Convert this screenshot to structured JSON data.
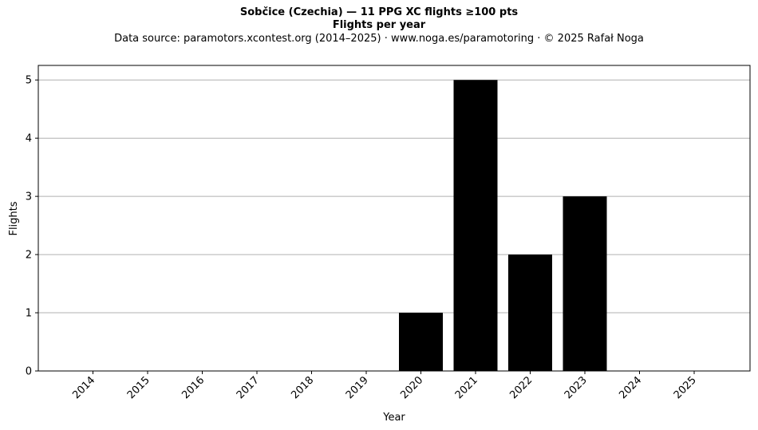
{
  "chart_data": {
    "type": "bar",
    "title": "Sobčice (Czechia)  —  11 PPG XC flights ≥100 pts",
    "subtitle": "Flights per year",
    "source_note": "Data source: paramotors.xcontest.org (2014–2025)  ·  www.noga.es/paramotoring  ·  © 2025 Rafał Noga",
    "xlabel": "Year",
    "ylabel": "Flights",
    "categories": [
      "2014",
      "2015",
      "2016",
      "2017",
      "2018",
      "2019",
      "2020",
      "2021",
      "2022",
      "2023",
      "2024",
      "2025"
    ],
    "values": [
      0,
      0,
      0,
      0,
      0,
      0,
      1,
      5,
      2,
      3,
      0,
      0
    ],
    "ylim": [
      0,
      5.25
    ],
    "yticks": [
      0,
      1,
      2,
      3,
      4,
      5
    ],
    "grid": "y",
    "bar_color": "#000000",
    "grid_color": "#b0b0b0"
  }
}
